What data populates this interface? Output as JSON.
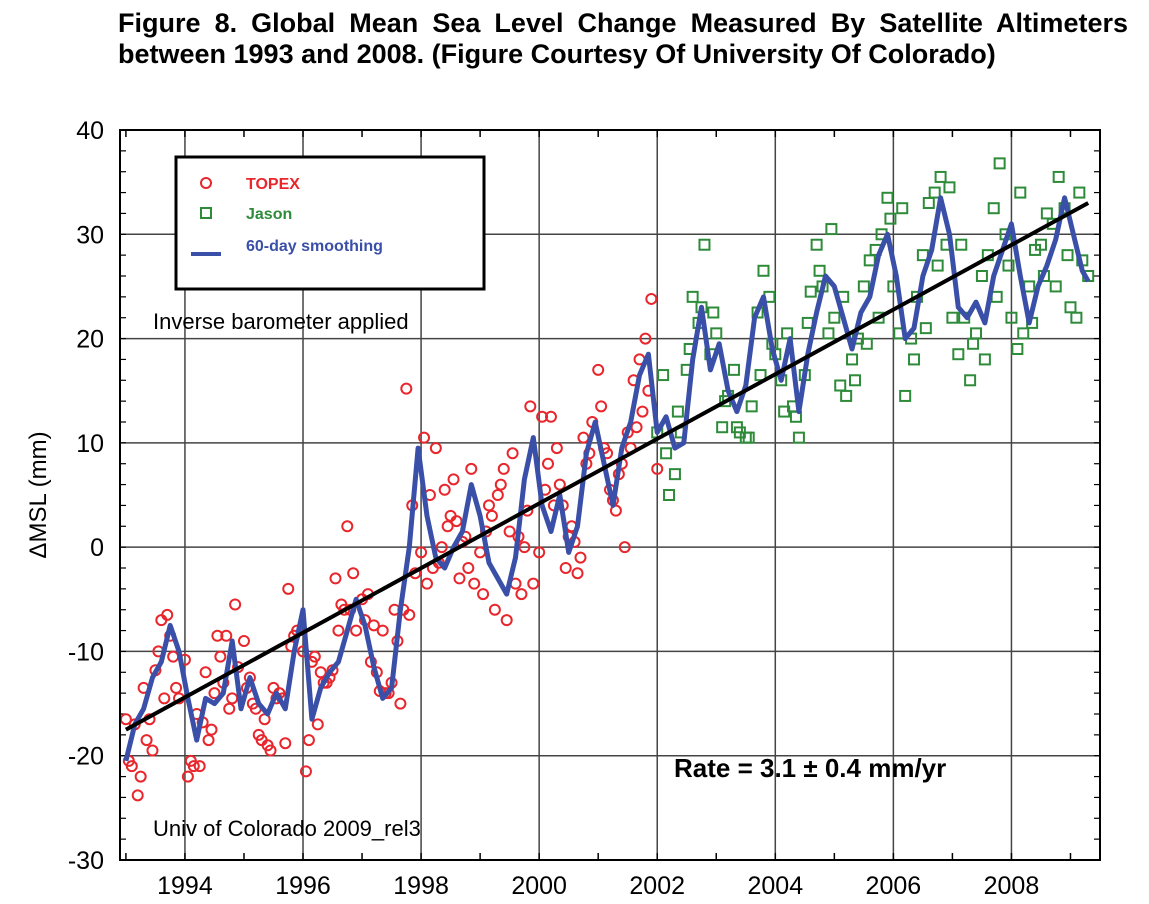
{
  "figure_caption": "Figure 8. Global Mean Sea Level Change Measured By Satellite Altimeters between 1993 and 2008. (Figure Courtesy Of University Of Colorado)",
  "chart_data": {
    "type": "scatter",
    "title": "",
    "xlabel": "",
    "ylabel": "ΔMSL   (mm)",
    "xlim": [
      1992.9,
      2009.5
    ],
    "ylim": [
      -30,
      40
    ],
    "x_ticks": [
      1994,
      1996,
      1998,
      2000,
      2002,
      2004,
      2006,
      2008
    ],
    "y_ticks": [
      -30,
      -20,
      -10,
      0,
      10,
      20,
      30,
      40
    ],
    "grid": true,
    "legend_position": "top-left",
    "series": [
      {
        "name": "TOPEX",
        "kind": "scatter",
        "marker": "circle",
        "color": "#e8262c",
        "x": [
          1993.0,
          1993.1,
          1993.2,
          1993.3,
          1993.4,
          1993.5,
          1993.6,
          1993.7,
          1993.8,
          1993.9,
          1994.0,
          1994.1,
          1994.2,
          1994.3,
          1994.4,
          1994.5,
          1994.6,
          1994.7,
          1994.8,
          1994.9,
          1995.0,
          1995.1,
          1995.2,
          1995.3,
          1995.4,
          1995.5,
          1995.6,
          1995.7,
          1995.8,
          1995.9,
          1996.0,
          1996.1,
          1996.2,
          1996.3,
          1996.4,
          1996.5,
          1996.6,
          1996.7,
          1996.8,
          1996.9,
          1997.0,
          1997.1,
          1997.2,
          1997.3,
          1997.4,
          1997.5,
          1997.6,
          1997.7,
          1997.8,
          1997.9,
          1998.0,
          1998.1,
          1998.2,
          1998.3,
          1998.4,
          1998.5,
          1998.6,
          1998.7,
          1998.8,
          1998.9,
          1999.0,
          1999.1,
          1999.2,
          1999.3,
          1999.4,
          1999.5,
          1999.6,
          1999.7,
          1999.8,
          1999.9,
          2000.0,
          2000.1,
          2000.2,
          2000.3,
          2000.4,
          2000.5,
          2000.6,
          2000.7,
          2000.8,
          2000.9,
          2001.0,
          2001.1,
          2001.2,
          2001.3,
          2001.4,
          2001.5,
          2001.6,
          2001.7,
          2001.8,
          2001.9,
          2002.0,
          1993.05,
          1993.25,
          1993.45,
          1993.65,
          1993.85,
          1994.05,
          1994.25,
          1994.45,
          1994.65,
          1994.85,
          1995.05,
          1995.25,
          1995.45,
          1995.65,
          1995.85,
          1996.05,
          1996.25,
          1996.45,
          1996.65,
          1996.85,
          1997.05,
          1997.25,
          1997.45,
          1997.65,
          1997.85,
          1998.05,
          1998.25,
          1998.45,
          1998.65,
          1998.85,
          1999.05,
          1999.25,
          1999.45,
          1999.65,
          1999.85,
          2000.05,
          2000.25,
          2000.45,
          2000.65,
          2000.85,
          2001.05,
          2001.25,
          2001.45,
          2001.65,
          2001.85,
          1993.15,
          1993.35,
          1993.55,
          1993.75,
          1994.15,
          1994.35,
          1994.55,
          1994.75,
          1995.15,
          1995.35,
          1995.55,
          1995.75,
          1996.15,
          1996.35,
          1996.55,
          1996.75,
          1997.15,
          1997.35,
          1997.55,
          1997.75,
          1998.15,
          1998.35,
          1998.55,
          1998.75,
          1999.15,
          1999.35,
          1999.55,
          1999.75,
          2000.15,
          2000.35,
          2000.55,
          2000.75,
          2001.15,
          2001.35,
          2001.55,
          2001.75
        ],
        "y": [
          -16.5,
          -21.0,
          -23.8,
          -13.5,
          -16.5,
          -11.8,
          -7.0,
          -6.5,
          -10.5,
          -14.5,
          -10.8,
          -20.5,
          -16.0,
          -16.8,
          -18.5,
          -14.0,
          -10.5,
          -8.5,
          -14.5,
          -11.5,
          -9.0,
          -12.5,
          -15.5,
          -18.5,
          -19.0,
          -13.5,
          -14.0,
          -18.8,
          -9.5,
          -8.0,
          -10.0,
          -18.5,
          -10.5,
          -12.0,
          -13.0,
          -11.8,
          -8.0,
          -6.0,
          -6.0,
          -8.0,
          -5.0,
          -4.5,
          -7.5,
          -13.8,
          -14.0,
          -13.0,
          -9.0,
          -6.0,
          -6.5,
          -2.5,
          -0.5,
          -3.5,
          -2.0,
          -1.5,
          5.5,
          3.0,
          2.5,
          0.5,
          -2.0,
          -3.5,
          -0.5,
          1.5,
          3.0,
          5.0,
          7.5,
          1.5,
          -3.5,
          -4.5,
          3.5,
          -3.5,
          -0.5,
          5.5,
          12.5,
          9.5,
          4.0,
          1.0,
          0.5,
          -1.0,
          8.0,
          12.0,
          17.0,
          9.5,
          5.5,
          3.5,
          8.0,
          11.0,
          16.0,
          18.0,
          20.0,
          23.8,
          7.5,
          -20.5,
          -22.0,
          -19.5,
          -14.5,
          -13.5,
          -22.0,
          -21.0,
          -17.5,
          -13.0,
          -5.5,
          -13.5,
          -18.0,
          -19.5,
          -14.5,
          -8.5,
          -21.5,
          -17.0,
          -12.5,
          -5.5,
          -2.5,
          -7.0,
          -12.0,
          -14.0,
          -15.0,
          4.0,
          10.5,
          9.5,
          2.0,
          -3.0,
          7.5,
          -4.5,
          -6.0,
          -7.0,
          1.0,
          13.5,
          12.5,
          4.0,
          -2.0,
          -2.5,
          9.0,
          13.5,
          4.5,
          0.0,
          11.5,
          15.0,
          -17.0,
          -18.5,
          -10.0,
          -8.5,
          -21.0,
          -12.0,
          -8.5,
          -15.5,
          -15.0,
          -16.5,
          -14.5,
          -4.0,
          -11.0,
          -13.0,
          -3.0,
          2.0,
          -11.0,
          -8.0,
          -6.0,
          15.2,
          5.0,
          0.0,
          6.5,
          1.0,
          4.0,
          6.0,
          9.0,
          0.0,
          8.0,
          6.0,
          2.0,
          10.5,
          9.0,
          7.0,
          9.5,
          13.0
        ]
      },
      {
        "name": "Jason",
        "kind": "scatter",
        "marker": "square",
        "color": "#2e8b3a",
        "x": [
          2002.0,
          2002.1,
          2002.2,
          2002.3,
          2002.4,
          2002.5,
          2002.6,
          2002.7,
          2002.8,
          2002.9,
          2003.0,
          2003.1,
          2003.2,
          2003.3,
          2003.4,
          2003.5,
          2003.6,
          2003.7,
          2003.8,
          2003.9,
          2004.0,
          2004.1,
          2004.2,
          2004.3,
          2004.4,
          2004.5,
          2004.6,
          2004.7,
          2004.8,
          2004.9,
          2005.0,
          2005.1,
          2005.2,
          2005.3,
          2005.4,
          2005.5,
          2005.6,
          2005.7,
          2005.8,
          2005.9,
          2006.0,
          2006.1,
          2006.2,
          2006.3,
          2006.4,
          2006.5,
          2006.6,
          2006.7,
          2006.8,
          2006.9,
          2007.0,
          2007.1,
          2007.2,
          2007.3,
          2007.4,
          2007.5,
          2007.6,
          2007.7,
          2007.8,
          2007.9,
          2008.0,
          2008.1,
          2008.2,
          2008.3,
          2008.4,
          2008.5,
          2008.6,
          2008.7,
          2008.8,
          2008.9,
          2009.0,
          2009.1,
          2009.2,
          2009.3,
          2002.15,
          2002.35,
          2002.55,
          2002.75,
          2002.95,
          2003.15,
          2003.35,
          2003.55,
          2003.75,
          2003.95,
          2004.15,
          2004.35,
          2004.55,
          2004.75,
          2004.95,
          2005.15,
          2005.35,
          2005.55,
          2005.75,
          2005.95,
          2006.15,
          2006.35,
          2006.55,
          2006.75,
          2006.95,
          2007.15,
          2007.35,
          2007.55,
          2007.75,
          2007.95,
          2008.15,
          2008.35,
          2008.55,
          2008.75,
          2008.95,
          2009.15
        ],
        "y": [
          11.0,
          16.5,
          5.0,
          7.0,
          11.0,
          17.0,
          24.0,
          21.5,
          29.0,
          18.5,
          20.5,
          11.5,
          14.5,
          17.0,
          11.0,
          10.5,
          13.5,
          22.5,
          26.5,
          24.0,
          18.5,
          16.0,
          20.5,
          13.5,
          10.5,
          16.5,
          24.5,
          29.0,
          25.0,
          20.5,
          22.0,
          15.5,
          14.5,
          18.0,
          20.0,
          25.0,
          27.5,
          28.5,
          30.0,
          33.5,
          25.0,
          20.5,
          14.5,
          20.0,
          24.0,
          28.0,
          33.0,
          34.0,
          35.5,
          29.0,
          22.0,
          18.5,
          22.0,
          16.0,
          20.5,
          26.0,
          28.0,
          32.5,
          36.8,
          30.0,
          22.0,
          19.0,
          20.5,
          25.0,
          28.5,
          29.0,
          32.0,
          31.0,
          35.5,
          32.5,
          23.0,
          22.0,
          27.5,
          26.0,
          9.0,
          13.0,
          19.0,
          23.0,
          22.5,
          14.0,
          11.5,
          10.5,
          16.5,
          19.5,
          13.0,
          12.5,
          21.5,
          26.5,
          30.5,
          24.0,
          16.0,
          19.5,
          22.0,
          31.5,
          32.5,
          18.0,
          21.0,
          27.0,
          34.5,
          29.0,
          19.5,
          18.0,
          24.0,
          27.0,
          34.0,
          21.5,
          26.0,
          25.0,
          28.0,
          34.0
        ]
      },
      {
        "name": "60-day smoothing",
        "kind": "line",
        "color": "#3a4fa8",
        "x": [
          1993.0,
          1993.15,
          1993.3,
          1993.45,
          1993.6,
          1993.75,
          1993.9,
          1994.05,
          1994.2,
          1994.35,
          1994.5,
          1994.65,
          1994.8,
          1994.95,
          1995.1,
          1995.25,
          1995.4,
          1995.55,
          1995.7,
          1995.85,
          1996.0,
          1996.15,
          1996.3,
          1996.45,
          1996.6,
          1996.75,
          1996.9,
          1997.05,
          1997.2,
          1997.35,
          1997.5,
          1997.65,
          1997.8,
          1997.95,
          1998.1,
          1998.25,
          1998.4,
          1998.55,
          1998.7,
          1998.85,
          1999.0,
          1999.15,
          1999.3,
          1999.45,
          1999.6,
          1999.75,
          1999.9,
          2000.05,
          2000.2,
          2000.35,
          2000.5,
          2000.65,
          2000.8,
          2000.95,
          2001.1,
          2001.25,
          2001.4,
          2001.55,
          2001.7,
          2001.85,
          2002.0,
          2002.15,
          2002.3,
          2002.45,
          2002.6,
          2002.75,
          2002.9,
          2003.05,
          2003.2,
          2003.35,
          2003.5,
          2003.65,
          2003.8,
          2003.95,
          2004.1,
          2004.25,
          2004.4,
          2004.55,
          2004.7,
          2004.85,
          2005.0,
          2005.15,
          2005.3,
          2005.45,
          2005.6,
          2005.75,
          2005.9,
          2006.05,
          2006.2,
          2006.35,
          2006.5,
          2006.65,
          2006.8,
          2006.95,
          2007.1,
          2007.25,
          2007.4,
          2007.55,
          2007.7,
          2007.85,
          2008.0,
          2008.15,
          2008.3,
          2008.45,
          2008.6,
          2008.75,
          2008.9,
          2009.05,
          2009.2,
          2009.3
        ],
        "y": [
          -20.5,
          -17.0,
          -15.5,
          -12.5,
          -11.0,
          -7.5,
          -10.0,
          -14.5,
          -18.5,
          -14.5,
          -15.0,
          -14.0,
          -9.0,
          -15.5,
          -12.5,
          -15.0,
          -16.0,
          -14.0,
          -15.5,
          -10.0,
          -6.0,
          -16.5,
          -13.5,
          -12.0,
          -11.0,
          -8.0,
          -5.0,
          -7.5,
          -11.5,
          -14.5,
          -13.5,
          -6.0,
          0.0,
          9.5,
          3.0,
          -1.0,
          -2.0,
          0.0,
          1.5,
          6.0,
          3.0,
          -1.5,
          -3.0,
          -4.5,
          -1.0,
          6.5,
          10.5,
          4.0,
          1.5,
          5.0,
          -0.5,
          2.0,
          9.0,
          12.0,
          8.0,
          4.0,
          9.5,
          12.0,
          16.5,
          18.5,
          11.0,
          12.5,
          9.5,
          10.0,
          18.0,
          23.0,
          17.0,
          19.5,
          15.0,
          13.0,
          15.5,
          22.0,
          24.0,
          19.0,
          16.0,
          20.0,
          13.0,
          18.5,
          22.5,
          26.0,
          25.0,
          22.0,
          19.0,
          22.5,
          24.0,
          28.0,
          30.0,
          26.0,
          20.0,
          21.0,
          26.0,
          28.5,
          33.5,
          30.0,
          23.0,
          22.0,
          23.5,
          21.5,
          26.0,
          28.5,
          31.0,
          26.0,
          21.5,
          25.0,
          27.0,
          29.5,
          33.5,
          30.0,
          26.5,
          25.5
        ]
      },
      {
        "name": "",
        "kind": "trend",
        "color": "#000000",
        "x": [
          1993.0,
          2009.3
        ],
        "y": [
          -17.5,
          33.0
        ]
      }
    ],
    "annotations": [
      "Inverse barometer applied",
      "Rate = 3.1 ± 0.4 mm/yr",
      "Univ of Colorado 2009_rel3"
    ]
  }
}
